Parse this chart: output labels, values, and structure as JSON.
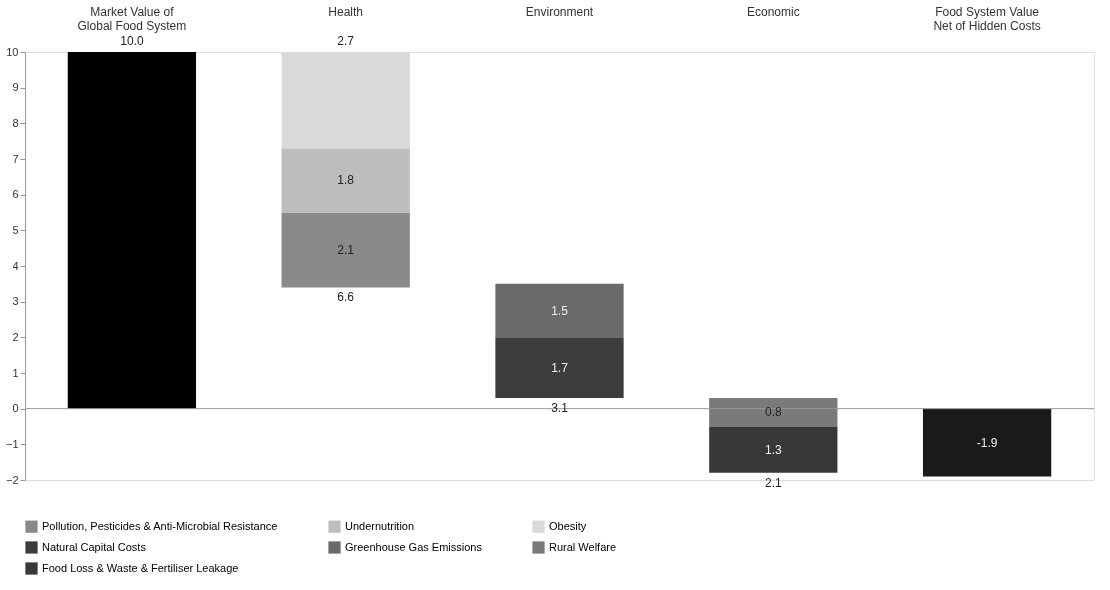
{
  "chart_data": {
    "type": "bar",
    "categories": [
      "Market Value of\nGlobal Food System",
      "Health",
      "Environment",
      "Economic",
      "Food System Value\nNet of Hidden Costs"
    ],
    "series": [
      {
        "color": "#000000",
        "values": [
          10.0,
          null,
          null,
          null,
          null
        ],
        "base": [
          0,
          null,
          null,
          null,
          null
        ],
        "value_labels": [
          "10.0",
          null,
          null,
          null,
          null
        ]
      },
      {
        "name": "Pollution, Pesticides & Anti-Microbial Resistance",
        "color": "#8a8a8a",
        "values": [
          null,
          2.1,
          null,
          null,
          null
        ],
        "base": [
          null,
          3.4,
          null,
          null,
          null
        ],
        "value_labels": [
          null,
          "2.1",
          null,
          null,
          null
        ]
      },
      {
        "name": "Undernutrition",
        "color": "#bdbdbd",
        "values": [
          null,
          1.8,
          null,
          null,
          null
        ],
        "base": [
          null,
          5.5,
          null,
          null,
          null
        ],
        "value_labels": [
          null,
          "1.8",
          null,
          null,
          null
        ]
      },
      {
        "name": "Obesity",
        "color": "#d9d9d9",
        "values": [
          null,
          2.7,
          null,
          null,
          null
        ],
        "base": [
          null,
          7.3,
          null,
          null,
          null
        ],
        "value_labels": [
          null,
          "2.7",
          null,
          null,
          null
        ]
      },
      {
        "name": "Natural Capital Costs",
        "color": "#3c3c3c",
        "values": [
          null,
          null,
          1.7,
          null,
          null
        ],
        "base": [
          null,
          null,
          0.3,
          null,
          null
        ],
        "value_labels": [
          null,
          null,
          "1.7",
          null,
          null
        ]
      },
      {
        "name": "Greenhouse Gas Emissions",
        "color": "#6a6a6a",
        "values": [
          null,
          null,
          1.5,
          null,
          null
        ],
        "base": [
          null,
          null,
          2.0,
          null,
          null
        ],
        "value_labels": [
          null,
          null,
          "1.5",
          null,
          null
        ]
      },
      {
        "name": "Rural Welfare",
        "color": "#7a7a7a",
        "values": [
          null,
          null,
          null,
          0.8,
          null
        ],
        "base": [
          null,
          null,
          null,
          -0.5,
          null
        ],
        "value_labels": [
          null,
          null,
          null,
          "0.8",
          null
        ]
      },
      {
        "name": "Food Loss & Waste & Fertiliser Leakage",
        "color": "#383838",
        "values": [
          null,
          null,
          null,
          1.3,
          null
        ],
        "base": [
          null,
          null,
          null,
          -1.8,
          null
        ],
        "value_labels": [
          null,
          null,
          null,
          "1.3",
          null
        ]
      },
      {
        "color": "#1a1a1a",
        "values": [
          null,
          null,
          null,
          null,
          -1.9
        ],
        "base": [
          null,
          null,
          null,
          null,
          0
        ],
        "value_labels": [
          null,
          null,
          null,
          null,
          "-1.9"
        ]
      }
    ],
    "annotations": [
      "6.6",
      "3.1",
      "2.1"
    ],
    "ref_lines": [
      {
        "axis": "y",
        "value": 0,
        "color": "#9a9a9a"
      }
    ],
    "ylim": [
      -2,
      10
    ],
    "yticks": [
      -2,
      -1,
      0,
      1,
      2,
      3,
      4,
      5,
      6,
      7,
      8,
      9,
      10
    ],
    "grid": false,
    "legend": "bottom"
  }
}
